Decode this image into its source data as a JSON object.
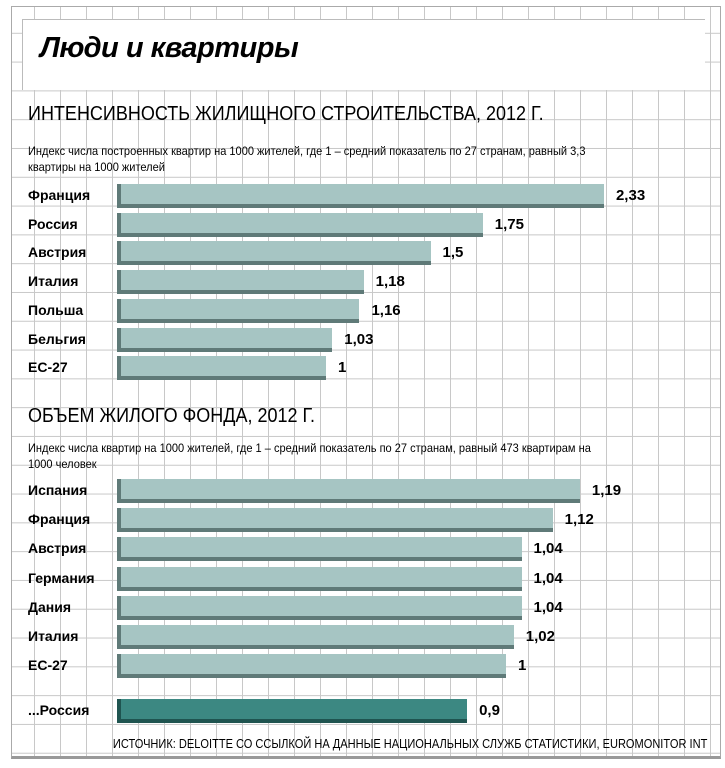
{
  "title": "Люди и квартиры",
  "source": "ИСТОЧНИК: DELOITTE СО ССЫЛКОЙ НА ДАННЫЕ НАЦИОНАЛЬНЫХ СЛУЖБ СТАТИСТИКИ, EUROMONITOR INT",
  "colors": {
    "bar": "#a6c5c3",
    "bar_highlight": "#3c8882"
  },
  "chart_data": [
    {
      "type": "bar",
      "orientation": "horizontal",
      "title": "ИНТЕНСИВНОСТЬ ЖИЛИЩНОГО СТРОИТЕЛЬСТВА, 2012 Г.",
      "subtitle": "Индекс числа построенных квартир на 1000 жителей, где 1 – средний показатель по 27 странам, равный 3,3 квартиры на 1000 жителей",
      "categories": [
        "Франция",
        "Россия",
        "Австрия",
        "Италия",
        "Польша",
        "Бельгия",
        "ЕС-27"
      ],
      "values": [
        2.33,
        1.75,
        1.5,
        1.18,
        1.16,
        1.03,
        1
      ],
      "labels": [
        "2,33",
        "1,75",
        "1,5",
        "1,18",
        "1,16",
        "1,03",
        "1"
      ]
    },
    {
      "type": "bar",
      "orientation": "horizontal",
      "title": "ОБЪЕМ ЖИЛОГО ФОНДА, 2012 Г.",
      "subtitle": "Индекс числа квартир на 1000 жителей, где 1 – средний показатель по 27 странам, равный 473 квартирам на 1000 человек",
      "categories": [
        "Испания",
        "Франция",
        "Австрия",
        "Германия",
        "Дания",
        "Италия",
        "ЕС-27",
        "...Россия"
      ],
      "values": [
        1.19,
        1.12,
        1.04,
        1.04,
        1.04,
        1.02,
        1,
        0.9
      ],
      "labels": [
        "1,19",
        "1,12",
        "1,04",
        "1,04",
        "1,04",
        "1,02",
        "1",
        "0,9"
      ],
      "highlight": "...Россия"
    }
  ]
}
